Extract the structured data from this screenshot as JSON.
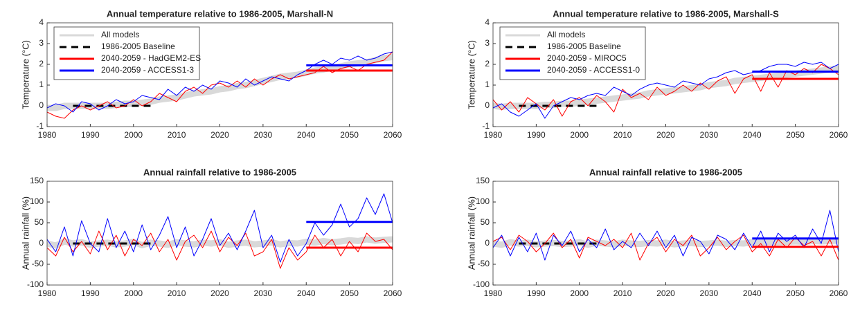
{
  "chart_data": [
    {
      "type": "line",
      "title": "Annual temperature relative to 1986-2005, Marshall-N",
      "y_label": "Temperature (°C)",
      "xlim": [
        1980,
        2060
      ],
      "xticks": [
        1980,
        1990,
        2000,
        2010,
        2020,
        2030,
        2040,
        2050,
        2060
      ],
      "ylim": [
        -1,
        4
      ],
      "yticks": [
        -1,
        0,
        1,
        2,
        3,
        4
      ],
      "legend": "upper left",
      "x": [
        1980,
        1982,
        1984,
        1986,
        1988,
        1990,
        1992,
        1994,
        1996,
        1998,
        2000,
        2002,
        2004,
        2006,
        2008,
        2010,
        2012,
        2014,
        2016,
        2018,
        2020,
        2022,
        2024,
        2026,
        2028,
        2030,
        2032,
        2034,
        2036,
        2038,
        2040,
        2042,
        2044,
        2046,
        2048,
        2050,
        2052,
        2054,
        2056,
        2058,
        2060
      ],
      "series": [
        {
          "name": "All models",
          "color": "#d9d9d9",
          "band": true,
          "values": [
            -0.1,
            -0.1,
            0,
            0,
            0,
            0,
            0,
            0,
            0.05,
            0.1,
            0.1,
            0.15,
            0.2,
            0.3,
            0.35,
            0.4,
            0.5,
            0.6,
            0.65,
            0.7,
            0.8,
            0.85,
            0.95,
            1.0,
            1.1,
            1.2,
            1.3,
            1.4,
            1.45,
            1.5,
            1.6,
            1.7,
            1.75,
            1.85,
            1.9,
            2.0,
            2.05,
            2.1,
            2.2,
            2.3,
            2.35
          ]
        },
        {
          "name": "1986-2005 Baseline",
          "color": "#000000",
          "dash": true,
          "x": [
            1986,
            2004
          ],
          "values": [
            0,
            0
          ]
        },
        {
          "name": "2040-2059 - HadGEM2-ES",
          "color": "#ff0000",
          "values": [
            -0.3,
            -0.5,
            -0.6,
            -0.2,
            0,
            -0.2,
            0,
            0.2,
            -0.1,
            0,
            0.3,
            0,
            0.2,
            0.6,
            0.4,
            0.2,
            0.7,
            0.9,
            0.6,
            1.0,
            1.1,
            0.9,
            1.2,
            0.9,
            1.3,
            1.0,
            1.3,
            1.5,
            1.3,
            1.4,
            1.5,
            1.6,
            1.9,
            1.6,
            1.8,
            1.9,
            1.7,
            2.0,
            2.1,
            2.2,
            2.6
          ],
          "mean_x": [
            2040,
            2060
          ],
          "mean_values": [
            1.7,
            1.7
          ]
        },
        {
          "name": "2040-2059 - ACCESS1-3",
          "color": "#0000ff",
          "values": [
            -0.1,
            0.1,
            0,
            -0.3,
            0.2,
            0.1,
            -0.2,
            0,
            0.3,
            0.1,
            0.2,
            0.5,
            0.4,
            0.3,
            0.8,
            0.5,
            0.9,
            0.7,
            1.0,
            0.8,
            1.2,
            1.1,
            0.9,
            1.3,
            1.0,
            1.2,
            1.4,
            1.3,
            1.2,
            1.5,
            1.7,
            2.0,
            2.2,
            2.0,
            2.3,
            2.2,
            2.4,
            2.2,
            2.3,
            2.5,
            2.6
          ],
          "mean_x": [
            2040,
            2060
          ],
          "mean_values": [
            1.95,
            1.95
          ]
        }
      ]
    },
    {
      "type": "line",
      "title": "Annual temperature relative to 1986-2005, Marshall-S",
      "y_label": "Temperature (°C)",
      "xlim": [
        1980,
        2060
      ],
      "xticks": [
        1980,
        1990,
        2000,
        2010,
        2020,
        2030,
        2040,
        2050,
        2060
      ],
      "ylim": [
        -1,
        4
      ],
      "yticks": [
        -1,
        0,
        1,
        2,
        3,
        4
      ],
      "legend": "upper left",
      "x": [
        1980,
        1982,
        1984,
        1986,
        1988,
        1990,
        1992,
        1994,
        1996,
        1998,
        2000,
        2002,
        2004,
        2006,
        2008,
        2010,
        2012,
        2014,
        2016,
        2018,
        2020,
        2022,
        2024,
        2026,
        2028,
        2030,
        2032,
        2034,
        2036,
        2038,
        2040,
        2042,
        2044,
        2046,
        2048,
        2050,
        2052,
        2054,
        2056,
        2058,
        2060
      ],
      "series": [
        {
          "name": "All models",
          "color": "#d9d9d9",
          "band": true,
          "values": [
            0,
            -0.05,
            0,
            0,
            0,
            0,
            0.05,
            0.05,
            0.1,
            0.1,
            0.15,
            0.2,
            0.25,
            0.3,
            0.35,
            0.4,
            0.45,
            0.5,
            0.6,
            0.65,
            0.7,
            0.75,
            0.8,
            0.85,
            0.9,
            1.0,
            1.05,
            1.1,
            1.2,
            1.25,
            1.3,
            1.35,
            1.4,
            1.45,
            1.5,
            1.55,
            1.6,
            1.65,
            1.7,
            1.75,
            1.8
          ]
        },
        {
          "name": "1986-2005 Baseline",
          "color": "#000000",
          "dash": true,
          "x": [
            1986,
            2004
          ],
          "values": [
            0,
            0
          ]
        },
        {
          "name": "2040-2059 - MIROC5",
          "color": "#ff0000",
          "values": [
            0.3,
            -0.2,
            0.2,
            -0.3,
            0.4,
            0.1,
            -0.2,
            0.3,
            -0.5,
            0.2,
            0.4,
            0,
            0.5,
            0.2,
            -0.3,
            0.8,
            0.4,
            0.6,
            0.3,
            0.9,
            0.5,
            0.7,
            1.0,
            0.7,
            1.1,
            0.8,
            1.2,
            1.4,
            0.6,
            1.3,
            1.5,
            0.7,
            1.6,
            0.9,
            1.7,
            1.5,
            1.8,
            1.6,
            2.0,
            1.8,
            1.5
          ],
          "mean_x": [
            2040,
            2060
          ],
          "mean_values": [
            1.3,
            1.3
          ]
        },
        {
          "name": "2040-2059 - ACCESS1-0",
          "color": "#0000ff",
          "values": [
            -0.1,
            0.1,
            -0.3,
            -0.5,
            -0.2,
            0.1,
            -0.6,
            0,
            0.2,
            0.4,
            0.3,
            0.5,
            0.6,
            0.5,
            0.9,
            0.7,
            0.5,
            0.8,
            1.0,
            1.1,
            1.0,
            0.9,
            1.2,
            1.1,
            1.0,
            1.3,
            1.4,
            1.6,
            1.7,
            1.5,
            1.6,
            1.7,
            1.9,
            2.0,
            2.0,
            1.9,
            2.1,
            2.0,
            2.1,
            1.8,
            2.0
          ],
          "mean_x": [
            2040,
            2060
          ],
          "mean_values": [
            1.65,
            1.65
          ]
        }
      ]
    },
    {
      "type": "line",
      "title": "Annual rainfall relative to 1986-2005",
      "y_label": "Annual rainfall (%)",
      "xlim": [
        1980,
        2060
      ],
      "xticks": [
        1980,
        1990,
        2000,
        2010,
        2020,
        2030,
        2040,
        2050,
        2060
      ],
      "ylim": [
        -100,
        150
      ],
      "yticks": [
        -100,
        -50,
        0,
        50,
        100,
        150
      ],
      "x": [
        1980,
        1982,
        1984,
        1986,
        1988,
        1990,
        1992,
        1994,
        1996,
        1998,
        2000,
        2002,
        2004,
        2006,
        2008,
        2010,
        2012,
        2014,
        2016,
        2018,
        2020,
        2022,
        2024,
        2026,
        2028,
        2030,
        2032,
        2034,
        2036,
        2038,
        2040,
        2042,
        2044,
        2046,
        2048,
        2050,
        2052,
        2054,
        2056,
        2058,
        2060
      ],
      "series": [
        {
          "color": "#d9d9d9",
          "band": true,
          "values": [
            0,
            -5,
            5,
            0,
            3,
            -3,
            0,
            2,
            -2,
            0,
            4,
            -4,
            2,
            0,
            -3,
            3,
            0,
            -2,
            2,
            0,
            3,
            -3,
            0,
            2,
            -2,
            0,
            3,
            -2,
            1,
            0,
            4,
            2,
            6,
            3,
            5,
            8,
            6,
            10,
            7,
            9,
            10
          ]
        },
        {
          "color": "#000000",
          "dash": true,
          "x": [
            1986,
            2004
          ],
          "values": [
            0,
            0
          ]
        },
        {
          "color": "#ff0000",
          "values": [
            -10,
            -30,
            15,
            -20,
            5,
            -25,
            30,
            -15,
            20,
            -30,
            10,
            -5,
            25,
            -20,
            10,
            -40,
            5,
            20,
            -10,
            30,
            -20,
            15,
            -5,
            25,
            -30,
            -20,
            10,
            -60,
            -10,
            -40,
            -20,
            20,
            -10,
            10,
            -30,
            5,
            -20,
            25,
            5,
            10,
            -15
          ],
          "mean_x": [
            2040,
            2060
          ],
          "mean_values": [
            -10,
            -10
          ]
        },
        {
          "color": "#0000ff",
          "values": [
            10,
            -20,
            40,
            -30,
            55,
            0,
            -20,
            60,
            -10,
            30,
            -20,
            45,
            -15,
            20,
            65,
            -10,
            40,
            -30,
            10,
            60,
            -5,
            25,
            -15,
            30,
            80,
            -10,
            20,
            -45,
            10,
            -30,
            0,
            50,
            20,
            45,
            95,
            40,
            60,
            110,
            70,
            120,
            50
          ],
          "mean_x": [
            2040,
            2060
          ],
          "mean_values": [
            52,
            52
          ]
        }
      ]
    },
    {
      "type": "line",
      "title": "Annual rainfall relative to 1986-2005",
      "y_label": "Annual rainfall (%)",
      "xlim": [
        1980,
        2060
      ],
      "xticks": [
        1980,
        1990,
        2000,
        2010,
        2020,
        2030,
        2040,
        2050,
        2060
      ],
      "ylim": [
        -100,
        150
      ],
      "yticks": [
        -100,
        -50,
        0,
        50,
        100,
        150
      ],
      "x": [
        1980,
        1982,
        1984,
        1986,
        1988,
        1990,
        1992,
        1994,
        1996,
        1998,
        2000,
        2002,
        2004,
        2006,
        2008,
        2010,
        2012,
        2014,
        2016,
        2018,
        2020,
        2022,
        2024,
        2026,
        2028,
        2030,
        2032,
        2034,
        2036,
        2038,
        2040,
        2042,
        2044,
        2046,
        2048,
        2050,
        2052,
        2054,
        2056,
        2058,
        2060
      ],
      "series": [
        {
          "color": "#d9d9d9",
          "band": true,
          "values": [
            0,
            -3,
            3,
            0,
            2,
            -2,
            0,
            1,
            -1,
            0,
            3,
            -3,
            2,
            0,
            -2,
            2,
            0,
            -1,
            1,
            0,
            2,
            -2,
            0,
            1,
            -1,
            0,
            2,
            -1,
            1,
            0,
            3,
            2,
            4,
            3,
            4,
            5,
            4,
            6,
            5,
            6,
            7
          ]
        },
        {
          "color": "#000000",
          "dash": true,
          "x": [
            1986,
            2004
          ],
          "values": [
            0,
            0
          ]
        },
        {
          "color": "#ff0000",
          "values": [
            5,
            15,
            -15,
            20,
            5,
            -20,
            0,
            25,
            -10,
            10,
            -35,
            15,
            5,
            -5,
            10,
            -10,
            25,
            -40,
            0,
            15,
            -20,
            10,
            -5,
            20,
            -30,
            -10,
            15,
            -15,
            5,
            20,
            -20,
            0,
            -30,
            10,
            -10,
            15,
            -5,
            5,
            -30,
            10,
            -40
          ],
          "mean_x": [
            2040,
            2060
          ],
          "mean_values": [
            -8,
            -8
          ]
        },
        {
          "color": "#0000ff",
          "values": [
            -10,
            20,
            -30,
            15,
            -20,
            25,
            -40,
            20,
            -5,
            30,
            -20,
            10,
            -10,
            35,
            -15,
            5,
            -10,
            25,
            -5,
            30,
            -10,
            20,
            -30,
            15,
            5,
            -25,
            20,
            10,
            -15,
            25,
            -10,
            30,
            -20,
            25,
            5,
            20,
            -10,
            35,
            0,
            80,
            -20
          ],
          "mean_x": [
            2040,
            2060
          ],
          "mean_values": [
            12,
            12
          ]
        }
      ]
    }
  ]
}
